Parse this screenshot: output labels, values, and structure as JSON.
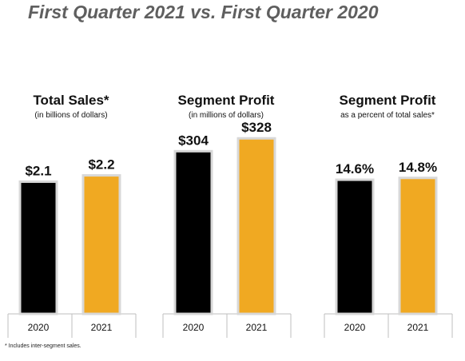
{
  "title": "First Quarter 2021 vs. First Quarter 2020",
  "footnote": "* Includes inter-segment sales.",
  "colors": {
    "2020": "#000000",
    "2021": "#f0a922",
    "frame": "#d8d8d8",
    "axis": "#bfbfbf"
  },
  "chart_data": [
    {
      "type": "bar",
      "title": "Total Sales*",
      "subtitle": "(in billions of dollars)",
      "categories": [
        "2020",
        "2021"
      ],
      "values": [
        2.1,
        2.2
      ],
      "value_labels": [
        "$2.1",
        "$2.2"
      ],
      "ylim": [
        0,
        3.4
      ],
      "grid": false,
      "legend": "none"
    },
    {
      "type": "bar",
      "title": "Segment Profit",
      "subtitle": "(in millions of dollars)",
      "categories": [
        "2020",
        "2021"
      ],
      "values": [
        304,
        328
      ],
      "value_labels": [
        "$304",
        "$328"
      ],
      "ylim": [
        0,
        400
      ],
      "grid": false,
      "legend": "none"
    },
    {
      "type": "bar",
      "title": "Segment Profit",
      "subtitle": "as a percent of total sales*",
      "categories": [
        "2020",
        "2021"
      ],
      "values": [
        14.6,
        14.8
      ],
      "value_labels": [
        "14.6%",
        "14.8%"
      ],
      "ylim": [
        0,
        23.3
      ],
      "grid": false,
      "legend": "none"
    }
  ]
}
